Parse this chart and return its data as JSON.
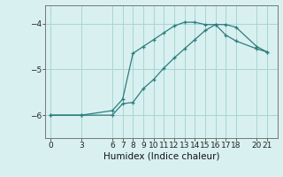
{
  "xlabel": "Humidex (Indice chaleur)",
  "background_color": "#d8f0f0",
  "line_color": "#2d7d7d",
  "grid_color": "#aad4d4",
  "xticks": [
    0,
    3,
    6,
    7,
    8,
    9,
    10,
    11,
    12,
    13,
    14,
    15,
    16,
    17,
    18,
    20,
    21
  ],
  "yticks": [
    -6,
    -5,
    -4
  ],
  "xlim": [
    -0.5,
    22.0
  ],
  "ylim": [
    -6.5,
    -3.6
  ],
  "curve1_x": [
    0,
    3,
    6,
    7,
    8,
    9,
    10,
    11,
    12,
    13,
    14,
    15,
    16,
    17,
    18,
    20,
    21
  ],
  "curve1_y": [
    -6.0,
    -6.0,
    -5.9,
    -5.65,
    -4.65,
    -4.5,
    -4.35,
    -4.2,
    -4.05,
    -3.97,
    -3.97,
    -4.02,
    -4.02,
    -4.25,
    -4.38,
    -4.55,
    -4.62
  ],
  "curve2_x": [
    0,
    3,
    6,
    7,
    8,
    9,
    10,
    11,
    12,
    13,
    14,
    15,
    16,
    17,
    18,
    20,
    21
  ],
  "curve2_y": [
    -6.0,
    -6.0,
    -6.0,
    -5.75,
    -5.72,
    -5.42,
    -5.22,
    -4.97,
    -4.75,
    -4.55,
    -4.35,
    -4.15,
    -4.02,
    -4.02,
    -4.08,
    -4.5,
    -4.62
  ]
}
